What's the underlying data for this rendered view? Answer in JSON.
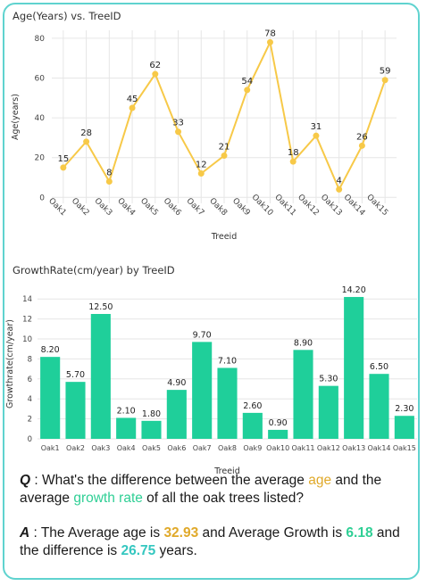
{
  "charts": [
    {
      "title": "Age(Years) vs. TreeID",
      "chart_data": {
        "type": "line",
        "title": "Age(Years) vs. TreeID",
        "xlabel": "Treeid",
        "ylabel": "Age(years)",
        "ylim": [
          -3,
          84
        ],
        "yticks": [
          "0",
          "20",
          "40",
          "60",
          "80"
        ],
        "categories": [
          "Oak1",
          "Oak2",
          "Oak3",
          "Oak4",
          "Oak5",
          "Oak6",
          "Oak7",
          "Oak8",
          "Oak9",
          "Oak10",
          "Oak11",
          "Oak12",
          "Oak13",
          "Oak14",
          "Oak15"
        ],
        "values": [
          15,
          28,
          8,
          45,
          62,
          33,
          12,
          21,
          54,
          78,
          18,
          31,
          4,
          26,
          59
        ],
        "labels": [
          "15",
          "28",
          "8",
          "45",
          "62",
          "33",
          "12",
          "21",
          "54",
          "78",
          "18",
          "31",
          "4",
          "26",
          "59"
        ],
        "color": "#f7c948",
        "grid": true
      }
    },
    {
      "title": "GrowthRate(cm/year) by TreeID",
      "chart_data": {
        "type": "bar",
        "title": "GrowthRate(cm/year) by TreeID",
        "xlabel": "Treeid",
        "ylabel": "Growthrate(cm/year)",
        "ylim": [
          0,
          15
        ],
        "yticks": [
          "0",
          "2",
          "4",
          "6",
          "8",
          "10",
          "12",
          "14"
        ],
        "categories": [
          "Oak1",
          "Oak2",
          "Oak3",
          "Oak4",
          "Oak5",
          "Oak6",
          "Oak7",
          "Oak8",
          "Oak9",
          "Oak10",
          "Oak11",
          "Oak12",
          "Oak13",
          "Oak14",
          "Oak15"
        ],
        "values": [
          8.2,
          5.7,
          12.5,
          2.1,
          1.8,
          4.9,
          9.7,
          7.1,
          2.6,
          0.9,
          8.9,
          5.3,
          14.2,
          6.5,
          2.3
        ],
        "labels": [
          "8.20",
          "5.70",
          "12.50",
          "2.10",
          "1.80",
          "4.90",
          "9.70",
          "7.10",
          "2.60",
          "0.90",
          "8.90",
          "5.30",
          "14.20",
          "6.50",
          "2.30"
        ],
        "color": "#1fcf9a",
        "grid": true
      }
    }
  ],
  "qa": {
    "q_mark": "Q",
    "q_sep": " : ",
    "q_text1": "What's the difference between the average ",
    "q_age": "age",
    "q_text2": " and the average ",
    "q_growth": "growth rate",
    "q_text3": " of all the oak trees listed?",
    "a_mark": "A",
    "a_sep": " : ",
    "a_text1": "The Average age is ",
    "a_age_val": "32.93",
    "a_text2": " and Average Growth is ",
    "a_growth_val": "6.18",
    "a_text3": " and the difference is ",
    "a_diff_val": "26.75",
    "a_text4": " years."
  },
  "colors": {
    "frame": "#5fd3cf",
    "age": "#e0a92a",
    "growth": "#2fcf95",
    "diff": "#35c7c0"
  }
}
